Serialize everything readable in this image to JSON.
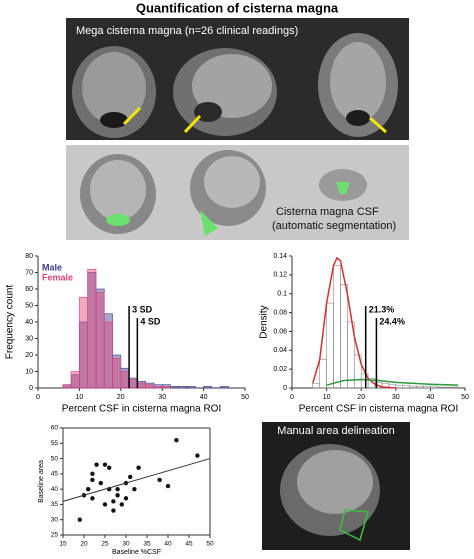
{
  "title": "Quantification of cisterna magna",
  "panels": {
    "mega": "Mega cisterna magna (n=26 clinical readings)",
    "segmentation": [
      "Cisterna magna CSF",
      "(automatic segmentation)"
    ],
    "manual": "Manual area delineation"
  },
  "chart_data": [
    {
      "type": "histogram",
      "xlabel": "Percent CSF in cisterna magna ROI",
      "ylabel": "Frequency count",
      "bins": [
        6,
        8,
        10,
        12,
        14,
        16,
        18,
        20,
        22,
        24,
        26,
        28,
        30,
        32,
        34,
        36,
        38,
        40,
        42,
        44,
        46,
        48
      ],
      "series": [
        {
          "name": "Male",
          "color": "#3a3a8c",
          "values": [
            2,
            8,
            40,
            70,
            60,
            45,
            20,
            12,
            6,
            4,
            3,
            2,
            2,
            1,
            1,
            1,
            0,
            1,
            0,
            1,
            0
          ]
        },
        {
          "name": "Female",
          "color": "#e0407a",
          "values": [
            2,
            10,
            55,
            72,
            58,
            40,
            18,
            10,
            5,
            3,
            2,
            1,
            1,
            0,
            0,
            0,
            0,
            0,
            0,
            0,
            0
          ]
        }
      ],
      "xlim": [
        0,
        50
      ],
      "xticks": [
        0,
        10,
        20,
        30,
        40,
        50
      ],
      "ylim": [
        0,
        80
      ],
      "yticks": [
        0,
        10,
        20,
        30,
        40,
        50,
        60,
        70,
        80
      ],
      "annotations": [
        {
          "x": 22,
          "label": "3 SD"
        },
        {
          "x": 24,
          "label": "4 SD"
        }
      ]
    },
    {
      "type": "histogram",
      "ylabel": "Density",
      "xlabel": "Percent CSF in cisterna magna ROI",
      "bins": [
        6,
        8,
        10,
        12,
        14,
        16,
        18,
        20,
        22,
        24,
        26,
        28,
        30,
        32,
        34,
        36,
        38,
        40,
        42,
        44,
        46,
        48
      ],
      "series": [
        {
          "color": "#888888",
          "values": [
            0.005,
            0.03,
            0.09,
            0.13,
            0.11,
            0.07,
            0.035,
            0.015,
            0.01,
            0.006,
            0.005,
            0.004,
            0.003,
            0.003,
            0.002,
            0.002,
            0.002,
            0.002,
            0.001,
            0.001,
            0.001
          ]
        }
      ],
      "curves": [
        {
          "color": "#d03030",
          "x": [
            6,
            8,
            10,
            12,
            13,
            14,
            16,
            18,
            20,
            22,
            24,
            26,
            30
          ],
          "y": [
            0.005,
            0.03,
            0.09,
            0.13,
            0.138,
            0.135,
            0.1,
            0.055,
            0.025,
            0.01,
            0.004,
            0.001,
            0
          ]
        },
        {
          "color": "#2a9a3a",
          "x": [
            10,
            15,
            20,
            25,
            30,
            40,
            48
          ],
          "y": [
            0.003,
            0.008,
            0.009,
            0.008,
            0.006,
            0.004,
            0.003
          ]
        }
      ],
      "xlim": [
        0,
        50
      ],
      "xticks": [
        0,
        10,
        20,
        30,
        40,
        50
      ],
      "ylim": [
        0,
        0.14
      ],
      "yticks": [
        0,
        0.02,
        0.04,
        0.06,
        0.08,
        0.1,
        0.12,
        0.14
      ],
      "annotations": [
        {
          "x": 21.3,
          "label": "21.3%"
        },
        {
          "x": 24.4,
          "label": "24.4%"
        }
      ]
    },
    {
      "type": "scatter",
      "xlabel": "Baseline %CSF",
      "ylabel": "Baseline area",
      "color": "#111111",
      "x": [
        19,
        20,
        21,
        22,
        22,
        23,
        24,
        25,
        25,
        26,
        26,
        27,
        27,
        28,
        28,
        29,
        30,
        30,
        31,
        32,
        33,
        38,
        40,
        42,
        47,
        22
      ],
      "y": [
        30,
        38,
        40,
        45,
        43,
        48,
        42,
        48,
        35,
        47,
        40,
        33,
        36,
        38,
        40,
        35,
        42,
        37,
        44,
        40,
        47,
        43,
        41,
        56,
        51,
        37
      ],
      "line": {
        "x": [
          15,
          50
        ],
        "y": [
          36,
          50
        ]
      },
      "xlim": [
        15,
        50
      ],
      "xticks": [
        15,
        20,
        25,
        30,
        35,
        40,
        45,
        50
      ],
      "ylim": [
        25,
        60
      ],
      "yticks": [
        25,
        30,
        35,
        40,
        45,
        50,
        55,
        60
      ]
    }
  ]
}
